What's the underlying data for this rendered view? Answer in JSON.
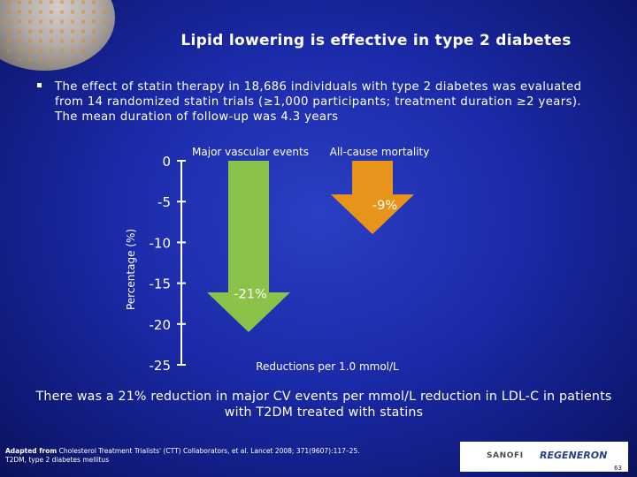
{
  "slide": {
    "title": "Lipid lowering is effective in type 2 diabetes",
    "bullet": "The effect of statin therapy in 18,686 individuals with type 2 diabetes was evaluated from 14 randomized statin trials (≥1,000 participants; treatment duration ≥2 years). The mean duration of follow-up was 4.3 years",
    "statement": "There was a 21% reduction in major CV events per mmol/L reduction in LDL-C in patients with T2DM treated with statins",
    "footnote_source_label": "Adapted from",
    "footnote_source": "Cholesterol Treatment Trialists' (CTT) Collaborators, et al. Lancet 2008; 371(9607):117–25.",
    "footnote_abbrev": "T2DM, type 2 diabetes mellitus",
    "logo_left": "SANOFI",
    "logo_right": "REGENERON",
    "page_number": "63"
  },
  "chart_data": {
    "type": "bar",
    "orientation": "downward-arrows",
    "categories": [
      "Major vascular events",
      "All-cause mortality"
    ],
    "values": [
      -21,
      -9
    ],
    "value_labels": [
      "-21%",
      "-9%"
    ],
    "ylabel": "Percentage (%)",
    "ylim": [
      -25,
      0
    ],
    "yticks": [
      0,
      -5,
      -10,
      -15,
      -20,
      -25
    ],
    "ytick_labels": [
      "0",
      "-5",
      "-10",
      "-15",
      "-20",
      "-25"
    ],
    "xlabel": "Reductions per 1.0 mmol/L",
    "colors": {
      "series_0": "#8bc34a",
      "series_1": "#e8941a"
    }
  }
}
